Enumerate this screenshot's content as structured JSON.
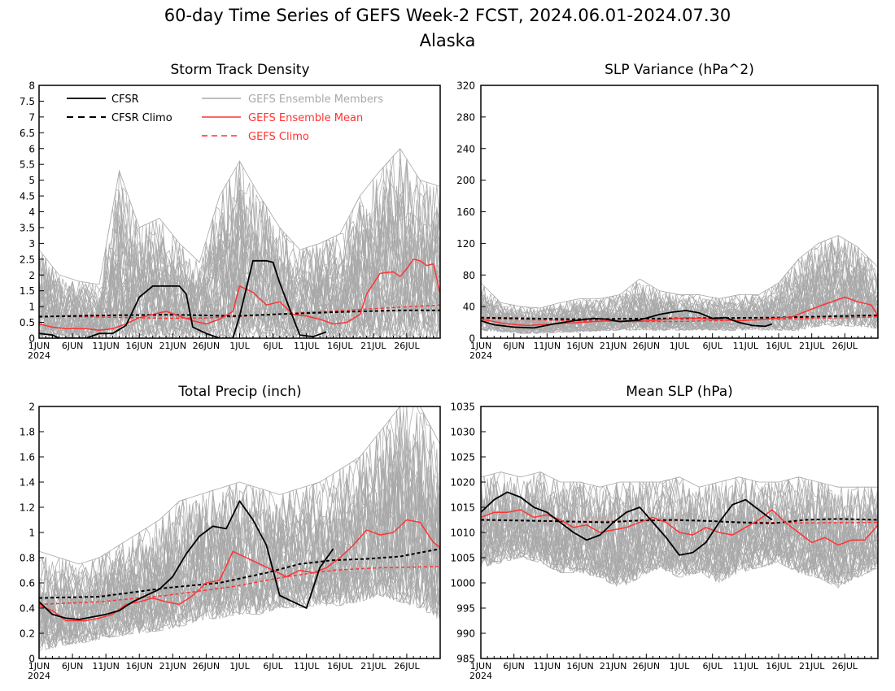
{
  "header": {
    "title": "60-day Time Series of GEFS Week-2 FCST, 2024.06.01-2024.07.30",
    "subtitle": "Alaska"
  },
  "legend": {
    "cfsr": "CFSR",
    "cfsr_climo": "CFSR Climo",
    "members": "GEFS Ensemble Members",
    "mean": "GEFS Ensemble Mean",
    "gefs_climo": "GEFS Climo"
  },
  "colors": {
    "cfsr": "#000000",
    "members": "#a8a8a8",
    "mean": "#ff3333",
    "frame": "#000000"
  },
  "x_axis": {
    "year_label": "2024",
    "tick_days": [
      1,
      6,
      11,
      16,
      21,
      26,
      31,
      36,
      41,
      46,
      51,
      56
    ],
    "tick_labels": [
      "1JUN",
      "6JUN",
      "11JUN",
      "16JUN",
      "21JUN",
      "26JUN",
      "1JUL",
      "6JUL",
      "11JUL",
      "16JUL",
      "21JUL",
      "26JUL"
    ],
    "day_range": [
      1,
      61
    ]
  },
  "chart_data": [
    {
      "type": "line",
      "title": "Storm Track Density",
      "x_units": "day of period (1 = 1JUN 2024)",
      "ylim": [
        0,
        8
      ],
      "yticks": [
        0,
        0.5,
        1,
        1.5,
        2,
        2.5,
        3,
        3.5,
        4,
        4.5,
        5,
        5.5,
        6,
        6.5,
        7,
        7.5,
        8
      ],
      "ytick_labels": [
        "0",
        "0.5",
        "1",
        "1.5",
        "2",
        "2.5",
        "3",
        "3.5",
        "4",
        "4.5",
        "5",
        "5.5",
        "6",
        "6.5",
        "7",
        "7.5",
        "8"
      ],
      "member_spread": {
        "x": [
          1,
          4,
          7,
          10,
          13,
          16,
          19,
          22,
          25,
          28,
          31,
          34,
          37,
          40,
          43,
          46,
          49,
          52,
          55,
          58,
          61
        ],
        "low": [
          0,
          0,
          0,
          0,
          0,
          0,
          0,
          0,
          0,
          0,
          0,
          0,
          0,
          0,
          0,
          0,
          0,
          0,
          0,
          0,
          0
        ],
        "high": [
          2.8,
          2.0,
          1.8,
          1.7,
          5.3,
          3.5,
          3.8,
          3.0,
          2.4,
          4.5,
          5.6,
          4.5,
          3.5,
          2.8,
          3.0,
          3.3,
          4.5,
          5.3,
          6.0,
          5.0,
          4.8
        ]
      },
      "series": [
        {
          "name": "CFSR",
          "x": [
            1,
            3,
            4,
            8,
            10,
            12,
            14,
            16,
            18,
            20,
            22,
            23,
            24,
            26,
            28,
            30,
            31,
            33,
            35,
            36,
            37,
            40,
            42,
            44
          ],
          "y": [
            0.15,
            0.1,
            0,
            0,
            0.15,
            0.15,
            0.4,
            1.3,
            1.65,
            1.65,
            1.65,
            1.4,
            0.35,
            0.15,
            0,
            0,
            0.7,
            2.45,
            2.45,
            2.4,
            1.75,
            0.1,
            0.05,
            0.2
          ]
        },
        {
          "name": "CFSR Climo",
          "x": [
            1,
            10,
            20,
            24,
            30,
            36,
            42,
            48,
            55,
            61
          ],
          "y": [
            0.68,
            0.72,
            0.74,
            0.73,
            0.7,
            0.75,
            0.8,
            0.84,
            0.88,
            0.88
          ]
        },
        {
          "name": "GEFS Ensemble Mean",
          "x": [
            1,
            3,
            5,
            8,
            10,
            12,
            14,
            16,
            18,
            20,
            22,
            24,
            26,
            28,
            30,
            31,
            33,
            35,
            37,
            39,
            41,
            43,
            45,
            47,
            49,
            50,
            52,
            54,
            55,
            56,
            57,
            58,
            59,
            60,
            61
          ],
          "y": [
            0.45,
            0.35,
            0.3,
            0.3,
            0.25,
            0.3,
            0.45,
            0.65,
            0.75,
            0.85,
            0.7,
            0.55,
            0.45,
            0.6,
            0.85,
            1.65,
            1.45,
            1.05,
            1.15,
            0.75,
            0.7,
            0.6,
            0.45,
            0.5,
            0.75,
            1.4,
            2.05,
            2.1,
            1.95,
            2.2,
            2.5,
            2.45,
            2.3,
            2.35,
            1.4
          ]
        },
        {
          "name": "GEFS Climo",
          "x": [
            1,
            10,
            20,
            26,
            32,
            38,
            44,
            50,
            56,
            61
          ],
          "y": [
            0.7,
            0.67,
            0.63,
            0.64,
            0.7,
            0.78,
            0.85,
            0.92,
            0.99,
            1.05
          ]
        }
      ]
    },
    {
      "type": "line",
      "title": "SLP Variance (hPa^2)",
      "x_units": "day of period (1 = 1JUN 2024)",
      "ylim": [
        0,
        320
      ],
      "yticks": [
        0,
        40,
        80,
        120,
        160,
        200,
        240,
        280,
        320
      ],
      "ytick_labels": [
        "0",
        "40",
        "80",
        "120",
        "160",
        "200",
        "240",
        "280",
        "320"
      ],
      "member_spread": {
        "x": [
          1,
          4,
          7,
          10,
          13,
          16,
          19,
          22,
          25,
          28,
          31,
          34,
          37,
          40,
          43,
          46,
          49,
          52,
          55,
          58,
          61
        ],
        "low": [
          10,
          8,
          6,
          6,
          7,
          8,
          9,
          10,
          10,
          10,
          10,
          10,
          10,
          10,
          10,
          10,
          10,
          15,
          15,
          15,
          12
        ],
        "high": [
          70,
          45,
          40,
          38,
          45,
          50,
          50,
          55,
          75,
          60,
          55,
          55,
          50,
          55,
          55,
          70,
          100,
          120,
          130,
          115,
          90
        ]
      },
      "series": [
        {
          "name": "CFSR",
          "x": [
            1,
            3,
            6,
            9,
            12,
            15,
            18,
            20,
            22,
            25,
            28,
            30,
            32,
            34,
            36,
            38,
            40,
            42,
            44,
            45
          ],
          "y": [
            22,
            17,
            14,
            13,
            18,
            22,
            25,
            24,
            21,
            23,
            30,
            33,
            35,
            32,
            25,
            26,
            20,
            16,
            15,
            18
          ]
        },
        {
          "name": "CFSR Climo",
          "x": [
            1,
            15,
            30,
            45,
            61
          ],
          "y": [
            26,
            24,
            25,
            26,
            29
          ]
        },
        {
          "name": "GEFS Ensemble Mean",
          "x": [
            1,
            5,
            8,
            12,
            16,
            20,
            24,
            28,
            32,
            36,
            40,
            44,
            48,
            52,
            56,
            58,
            60,
            61
          ],
          "y": [
            24,
            18,
            16,
            18,
            20,
            22,
            21,
            23,
            26,
            24,
            22,
            24,
            27,
            40,
            52,
            46,
            42,
            28
          ]
        },
        {
          "name": "GEFS Climo",
          "x": [
            1,
            15,
            30,
            45,
            61
          ],
          "y": [
            25,
            22,
            21,
            24,
            27
          ]
        }
      ]
    },
    {
      "type": "line",
      "title": "Total Precip (inch)",
      "x_units": "day of period (1 = 1JUN 2024)",
      "ylim": [
        0,
        2
      ],
      "yticks": [
        0,
        0.2,
        0.4,
        0.6,
        0.8,
        1,
        1.2,
        1.4,
        1.6,
        1.8,
        2
      ],
      "ytick_labels": [
        "0",
        "0.2",
        "0.4",
        "0.6",
        "0.8",
        "1",
        "1.2",
        "1.4",
        "1.6",
        "1.8",
        "2"
      ],
      "member_spread": {
        "x": [
          1,
          4,
          7,
          10,
          13,
          16,
          19,
          22,
          25,
          28,
          31,
          34,
          37,
          40,
          43,
          46,
          49,
          52,
          55,
          58,
          61
        ],
        "low": [
          0.05,
          0.1,
          0.12,
          0.15,
          0.18,
          0.2,
          0.22,
          0.25,
          0.3,
          0.32,
          0.35,
          0.35,
          0.4,
          0.4,
          0.42,
          0.42,
          0.45,
          0.5,
          0.45,
          0.4,
          0.3
        ],
        "high": [
          0.85,
          0.8,
          0.75,
          0.8,
          0.9,
          1.0,
          1.1,
          1.25,
          1.3,
          1.35,
          1.4,
          1.35,
          1.3,
          1.35,
          1.4,
          1.5,
          1.6,
          1.8,
          2.0,
          2.0,
          1.7
        ]
      },
      "series": [
        {
          "name": "CFSR",
          "x": [
            1,
            3,
            5,
            7,
            9,
            11,
            13,
            15,
            17,
            19,
            21,
            23,
            25,
            27,
            29,
            31,
            33,
            35,
            37,
            39,
            41,
            43,
            45
          ],
          "y": [
            0.45,
            0.35,
            0.32,
            0.31,
            0.33,
            0.35,
            0.38,
            0.45,
            0.5,
            0.55,
            0.65,
            0.83,
            0.97,
            1.05,
            1.03,
            1.25,
            1.1,
            0.9,
            0.5,
            0.45,
            0.4,
            0.72,
            0.87
          ]
        },
        {
          "name": "CFSR Climo",
          "x": [
            1,
            10,
            20,
            28,
            35,
            40,
            45,
            50,
            55,
            61
          ],
          "y": [
            0.48,
            0.49,
            0.56,
            0.6,
            0.68,
            0.75,
            0.78,
            0.79,
            0.81,
            0.87
          ]
        },
        {
          "name": "GEFS Ensemble Mean",
          "x": [
            1,
            3,
            5,
            8,
            10,
            12,
            14,
            16,
            18,
            20,
            22,
            24,
            26,
            28,
            30,
            32,
            34,
            36,
            38,
            40,
            42,
            44,
            46,
            48,
            50,
            52,
            54,
            56,
            58,
            60,
            61
          ],
          "y": [
            0.42,
            0.38,
            0.3,
            0.3,
            0.32,
            0.35,
            0.43,
            0.45,
            0.48,
            0.45,
            0.43,
            0.5,
            0.6,
            0.62,
            0.85,
            0.8,
            0.75,
            0.7,
            0.65,
            0.7,
            0.68,
            0.72,
            0.8,
            0.9,
            1.02,
            0.98,
            1.0,
            1.1,
            1.08,
            0.92,
            0.88
          ]
        },
        {
          "name": "GEFS Climo",
          "x": [
            1,
            10,
            20,
            30,
            38,
            45,
            52,
            61
          ],
          "y": [
            0.43,
            0.45,
            0.5,
            0.57,
            0.65,
            0.7,
            0.72,
            0.73
          ]
        }
      ]
    },
    {
      "type": "line",
      "title": "Mean SLP (hPa)",
      "x_units": "day of period (1 = 1JUN 2024)",
      "ylim": [
        985,
        1035
      ],
      "yticks": [
        985,
        990,
        995,
        1000,
        1005,
        1010,
        1015,
        1020,
        1025,
        1030,
        1035
      ],
      "ytick_labels": [
        "985",
        "990",
        "995",
        "1000",
        "1005",
        "1010",
        "1015",
        "1020",
        "1025",
        "1030",
        "1035"
      ],
      "member_spread": {
        "x": [
          1,
          4,
          7,
          10,
          13,
          16,
          19,
          22,
          25,
          28,
          31,
          34,
          37,
          40,
          43,
          46,
          49,
          52,
          55,
          58,
          61
        ],
        "low": [
          1003,
          1004,
          1005,
          1004,
          1002,
          1002,
          1001,
          999,
          1001,
          1003,
          1001,
          1002,
          1000,
          1002,
          1003,
          1004,
          1002,
          1001,
          999,
          1001,
          1003
        ],
        "high": [
          1021,
          1022,
          1021,
          1022,
          1020,
          1020,
          1019,
          1020,
          1020,
          1020,
          1021,
          1019,
          1020,
          1021,
          1020,
          1020,
          1021,
          1020,
          1019,
          1019,
          1019
        ]
      },
      "series": [
        {
          "name": "CFSR",
          "x": [
            1,
            3,
            5,
            7,
            9,
            11,
            13,
            15,
            17,
            19,
            21,
            23,
            25,
            27,
            29,
            31,
            33,
            35,
            37,
            39,
            41,
            43,
            45
          ],
          "y": [
            1014,
            1016.5,
            1018,
            1017,
            1015,
            1014,
            1012,
            1010,
            1008.5,
            1009.5,
            1012,
            1014,
            1015,
            1012,
            1009,
            1005.5,
            1006,
            1008,
            1012,
            1015.5,
            1016.5,
            1014.5,
            1012.5
          ]
        },
        {
          "name": "CFSR Climo",
          "x": [
            1,
            10,
            20,
            25,
            30,
            35,
            40,
            45,
            50,
            55,
            61
          ],
          "y": [
            1012.5,
            1012.3,
            1012.0,
            1012.4,
            1012.5,
            1012.3,
            1012.0,
            1011.8,
            1012.5,
            1012.7,
            1012.5
          ]
        },
        {
          "name": "GEFS Ensemble Mean",
          "x": [
            1,
            3,
            5,
            7,
            9,
            11,
            13,
            15,
            17,
            19,
            21,
            23,
            25,
            27,
            29,
            31,
            33,
            35,
            37,
            39,
            41,
            43,
            45,
            47,
            49,
            51,
            53,
            55,
            57,
            59,
            61
          ],
          "y": [
            1013,
            1014,
            1014,
            1014.5,
            1013,
            1013.5,
            1012.5,
            1011,
            1011.5,
            1010,
            1010.5,
            1011,
            1012,
            1013,
            1012,
            1010,
            1009.5,
            1011,
            1010,
            1009.5,
            1011,
            1012.5,
            1014.5,
            1012,
            1010,
            1008,
            1009,
            1007.5,
            1008.5,
            1008.5,
            1011.5
          ]
        },
        {
          "name": "GEFS Climo",
          "x": [
            1,
            10,
            20,
            30,
            40,
            50,
            61
          ],
          "y": [
            1012.6,
            1012.2,
            1012.2,
            1012.4,
            1012.1,
            1011.9,
            1012.0
          ]
        }
      ]
    }
  ]
}
